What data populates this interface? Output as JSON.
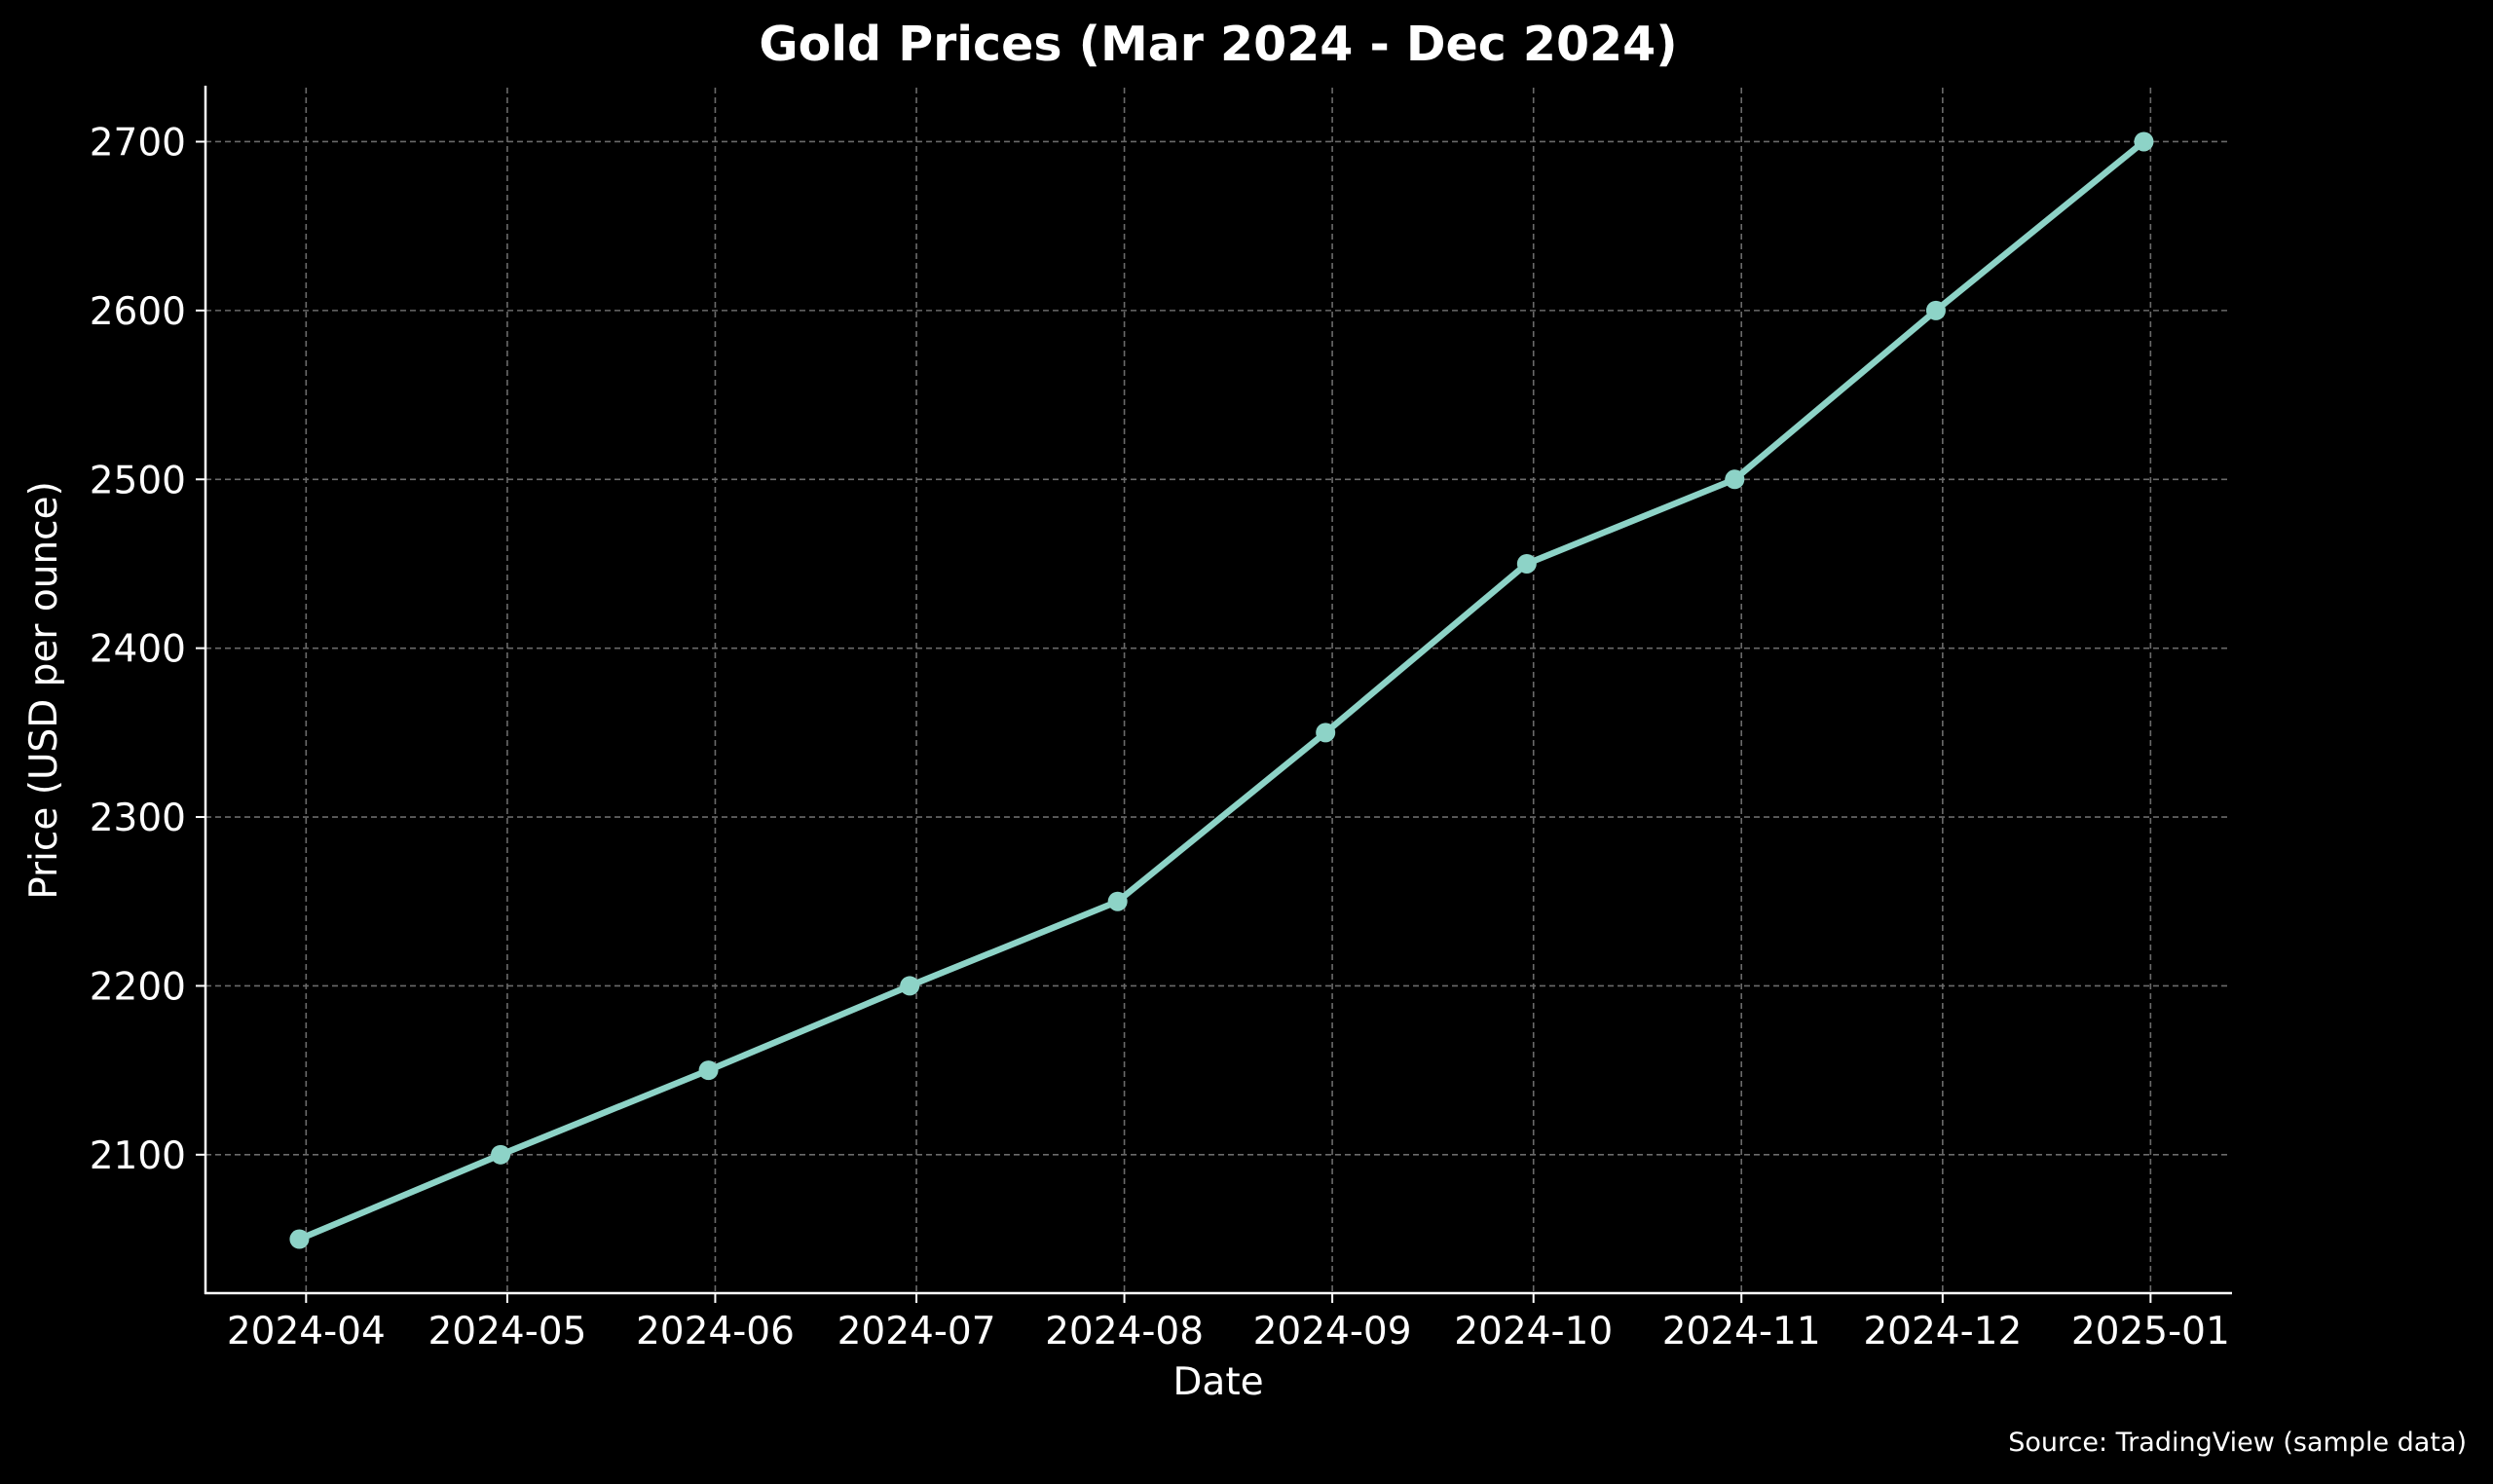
{
  "chart_data": {
    "type": "line",
    "title": "Gold Prices (Mar 2024 - Dec 2024)",
    "xlabel": "Date",
    "ylabel": "Price (USD per ounce)",
    "source": "Source: TradingView (sample data)",
    "x": [
      "2024-03-31",
      "2024-04-30",
      "2024-05-31",
      "2024-06-30",
      "2024-07-31",
      "2024-08-31",
      "2024-09-30",
      "2024-10-31",
      "2024-11-30",
      "2024-12-31"
    ],
    "series": [
      {
        "values": [
          2050,
          2100,
          2150,
          2200,
          2250,
          2350,
          2450,
          2500,
          2600,
          2700
        ]
      }
    ],
    "xticks": [
      "2024-04",
      "2024-05",
      "2024-06",
      "2024-07",
      "2024-08",
      "2024-09",
      "2024-10",
      "2024-11",
      "2024-12",
      "2025-01"
    ],
    "yticks": [
      2100,
      2200,
      2300,
      2400,
      2500,
      2600,
      2700
    ],
    "xlim": [
      "2024-03-17",
      "2025-01-13"
    ],
    "ylim": [
      2018,
      2732
    ],
    "grid": true,
    "line_color": "#8dd3c7",
    "background": "#000000"
  }
}
